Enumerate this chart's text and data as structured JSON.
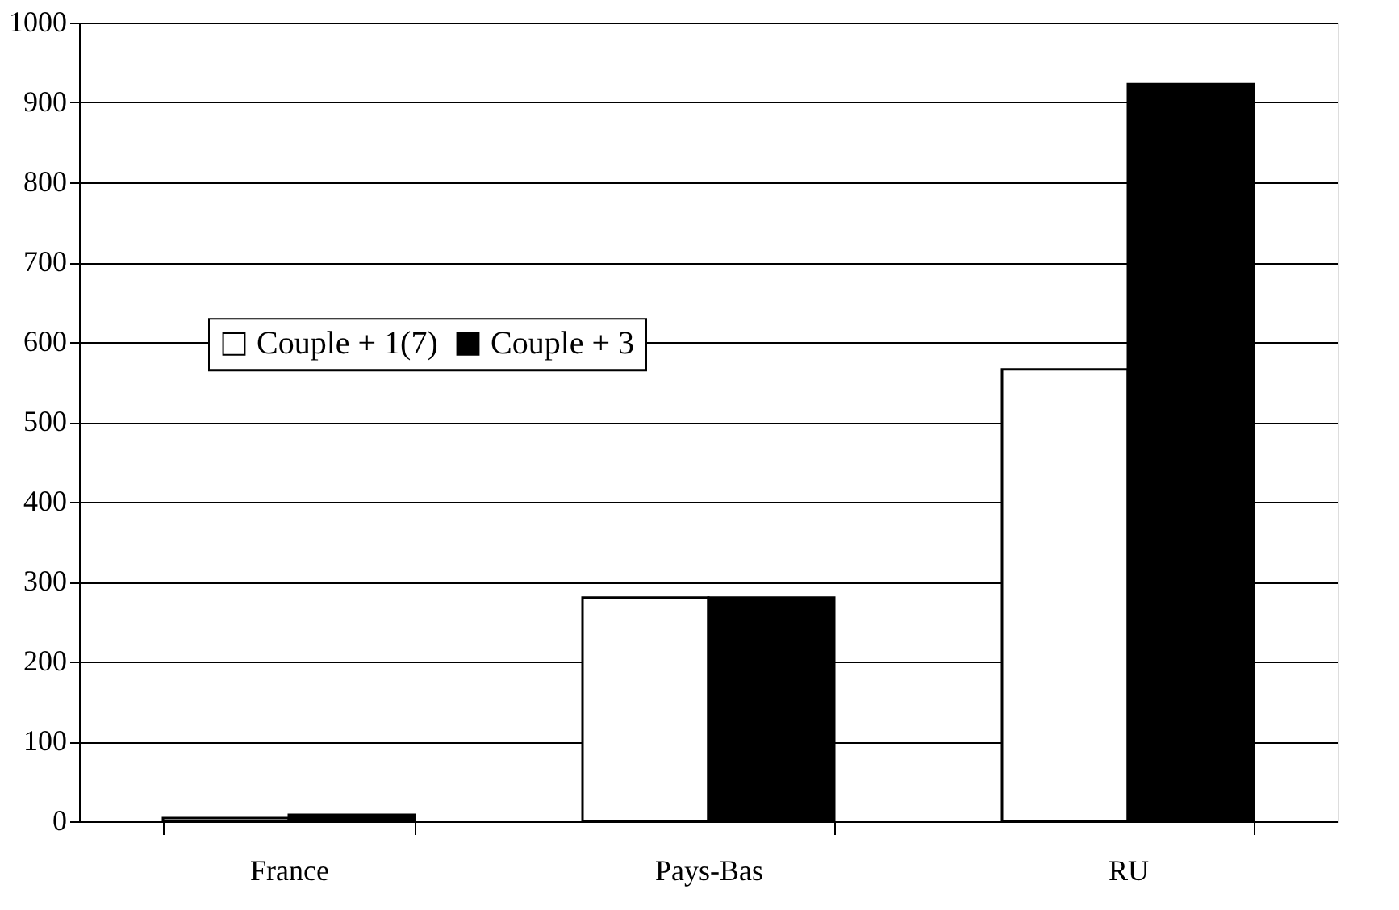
{
  "chart_data": {
    "type": "bar",
    "categories": [
      "France",
      "Pays-Bas",
      "RU"
    ],
    "series": [
      {
        "name": "Couple + 1(7)",
        "color": "#ffffff",
        "values": [
          4,
          280,
          566
        ]
      },
      {
        "name": "Couple + 3",
        "color": "#000000",
        "values": [
          8,
          280,
          923
        ]
      }
    ],
    "ylim": [
      0,
      1000
    ],
    "yticks": [
      0,
      100,
      200,
      300,
      400,
      500,
      600,
      700,
      800,
      900,
      1000
    ],
    "grid": "y",
    "legend": "left"
  }
}
